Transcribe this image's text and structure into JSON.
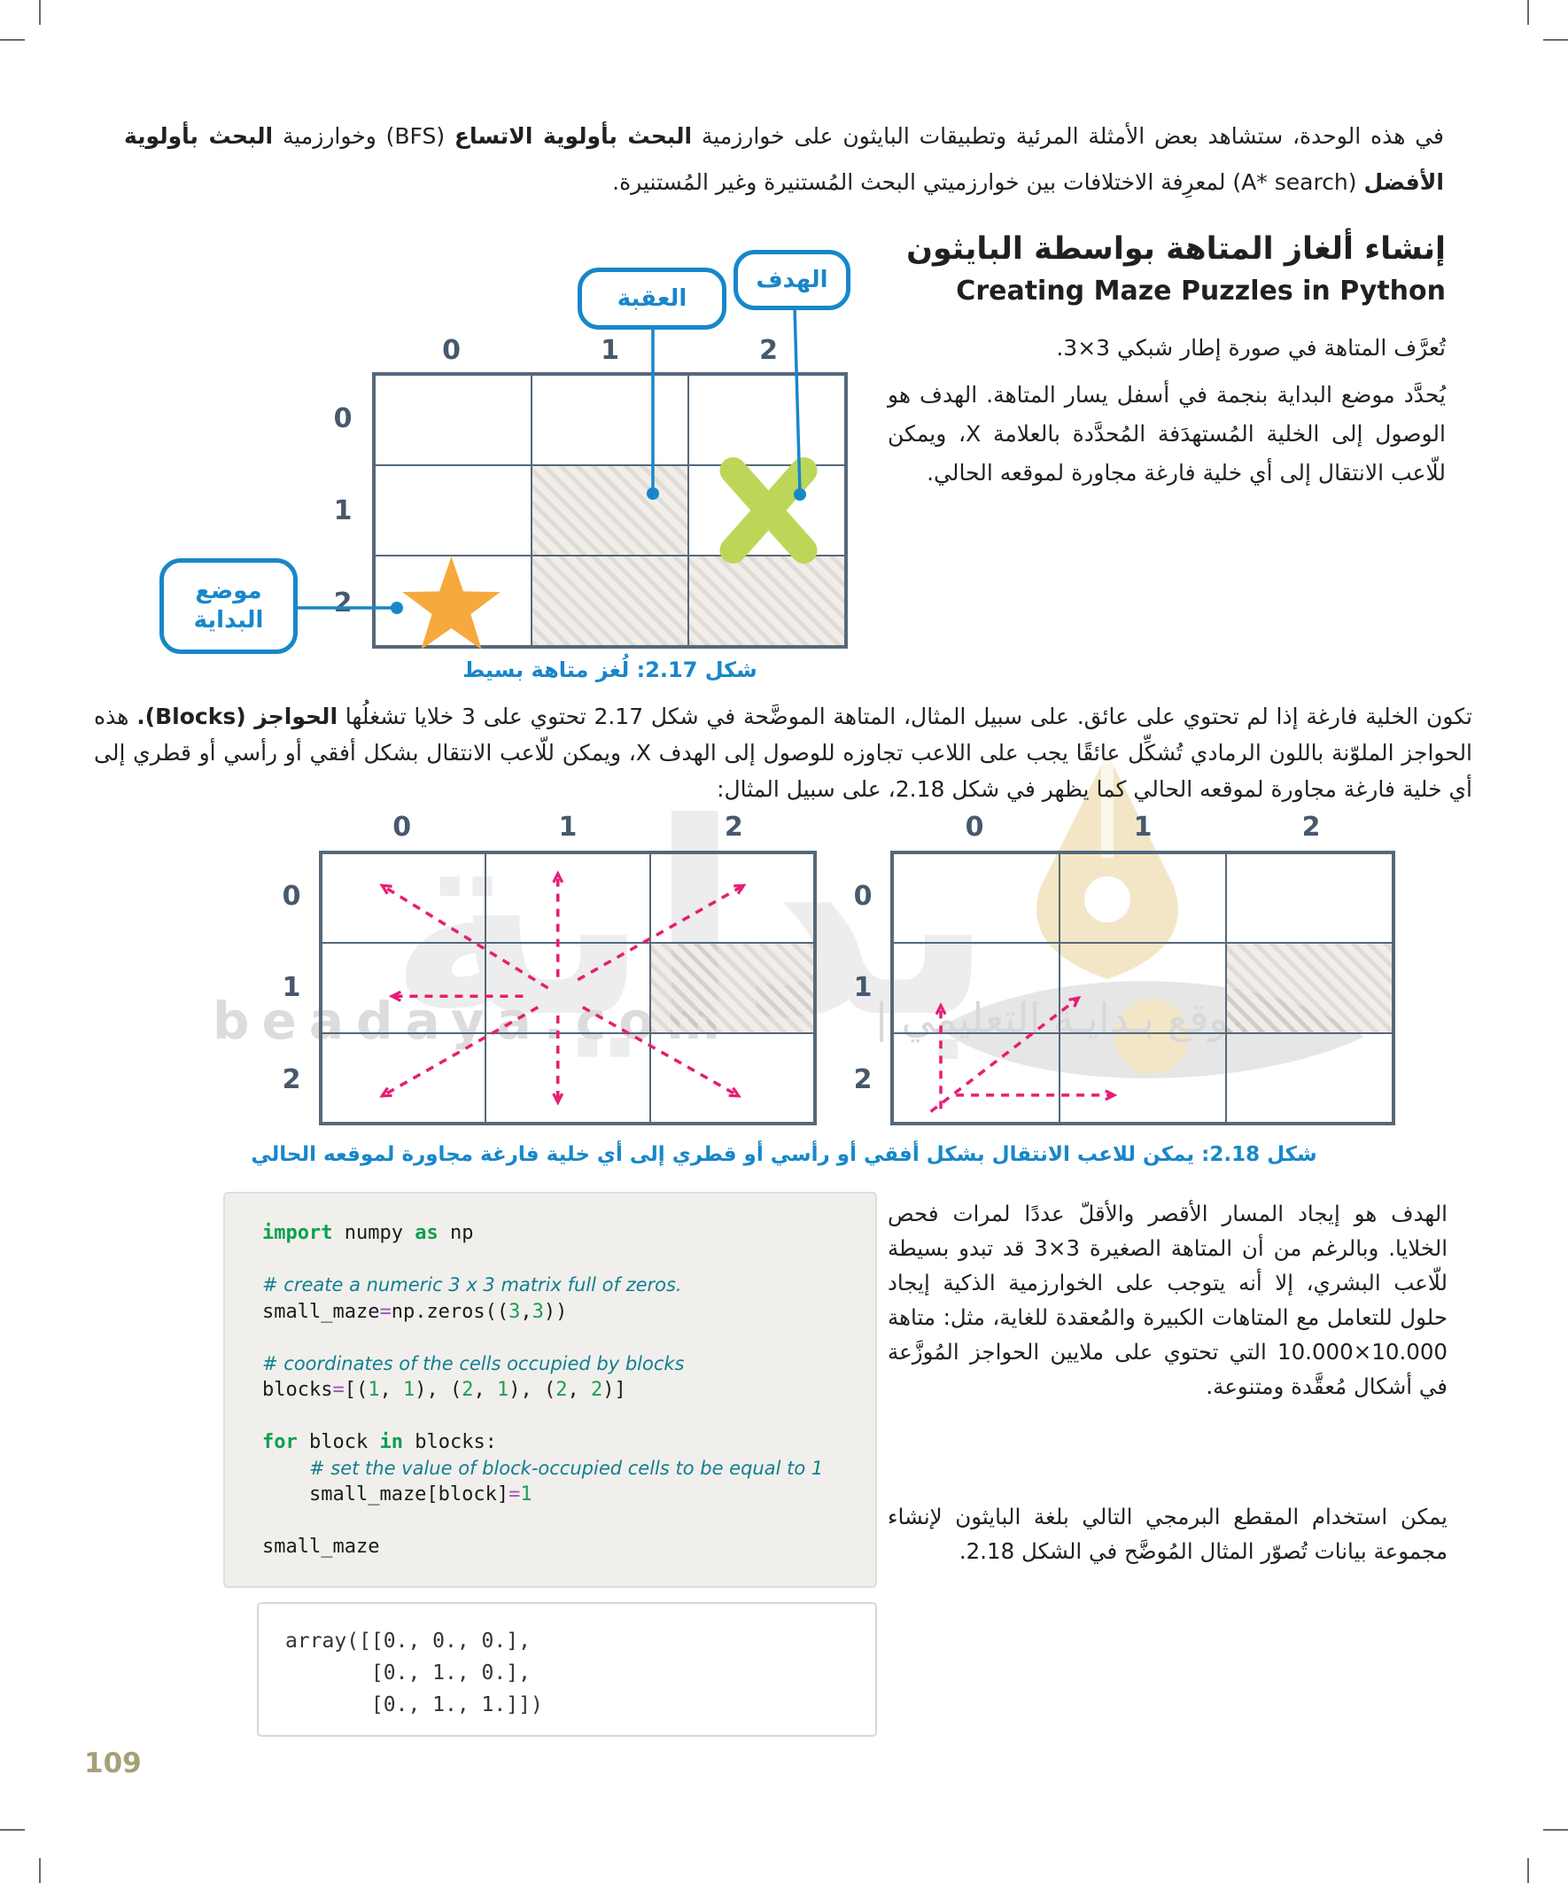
{
  "page": {
    "number": "109"
  },
  "colors": {
    "accent_blue": "#1887c9",
    "grid_line": "#56687a",
    "label": "#47596b",
    "star": "#f6a93c",
    "goal_x": "#bcd757",
    "arrow": "#e71d73",
    "code_keyword": "#0ca04e",
    "code_comment": "#0f7f90",
    "code_number": "#1ba052",
    "code_operator": "#9d59b3",
    "page_number": "#a5a077"
  },
  "intro": {
    "s1": "في هذه الوحدة، ستشاهد بعض الأمثلة المرئية وتطبيقات البايثون على خوارزمية ",
    "s2": "البحث بأولوية الاتساع",
    "s3": " (BFS) وخوارزمية ",
    "s4": "البحث بأولوية الأفضل",
    "s5": " (A* search) لمعرِفة الاختلافات بين خوارزميتي البحث المُستنيرة وغير المُستنيرة."
  },
  "heading": {
    "ar": "إنشاء ألغاز المتاهة بواسطة البايثون",
    "en": "Creating Maze Puzzles in Python"
  },
  "sections": {
    "define_maze": "تُعرَّف المتاهة في صورة إطار شبكي 3×3.",
    "start_para": "يُحدَّد موضع البداية بنجمة في أسفل يسار المتاهة. الهدف هو الوصول إلى الخلية المُستهدَفة المُحدَّدة بالعلامة X، ويمكن للّاعب الانتقال إلى أي خلية فارغة مجاورة لموقعه الحالي.",
    "blocks_a": "تكون الخلية فارغة إذا لم تحتوي على عائق. على سبيل المثال، المتاهة الموضَّحة في شكل 2.17 تحتوي على 3 خلايا تشغلُها ",
    "blocks_b": "الحواجز (Blocks).",
    "blocks_c": " هذه الحواجز الملوّنة باللون الرمادي تُشكِّل عائقًا يجب على اللاعب تجاوزه للوصول إلى الهدف X، ويمكن للّاعب الانتقال بشكل أفقي أو رأسي أو قطري إلى أي خلية فارغة مجاورة لموقعه الحالي كما يظهر في شكل 2.18، على سبيل المثال:",
    "right_p1": "الهدف هو إيجاد المسار الأقصر والأقلّ عددًا لمرات فحص الخلايا. وبالرغم من أن المتاهة الصغيرة 3×3 قد تبدو بسيطة للّاعب البشري، إلا أنه يتوجب على الخوارزمية الذكية إيجاد حلول للتعامل مع المتاهات الكبيرة والمُعقدة للغاية، مثل: متاهة 10.000×10.000 التي تحتوي على ملايين الحواجز المُوزَّعة في أشكال مُعقَّدة ومتنوعة.",
    "right_p2": "يمكن استخدام المقطع البرمجي التالي بلغة البايثون لإنشاء مجموعة بيانات تُصوّر المثال المُوضَّح في الشكل 2.18."
  },
  "callouts": {
    "obstacle": "العقبة",
    "goal": "الهدف",
    "start": "موضع البداية"
  },
  "captions": {
    "fig217": "شكل 2.17: لُغز متاهة بسيط",
    "fig218": "شكل 2.18: يمكن للاعب الانتقال بشكل أفقي أو رأسي أو قطري إلى أي خلية فارغة مجاورة لموقعه الحالي"
  },
  "mazes": {
    "fig217": {
      "cols": [
        "0",
        "1",
        "2"
      ],
      "rows": [
        "0",
        "1",
        "2"
      ],
      "blocked": [
        [
          1,
          1
        ],
        [
          2,
          1
        ],
        [
          2,
          2
        ]
      ],
      "star": [
        2,
        0
      ],
      "goal": [
        1,
        2
      ],
      "arrows": []
    },
    "fig218_left": {
      "cols": [
        "0",
        "1",
        "2"
      ],
      "rows": [
        "0",
        "1",
        "2"
      ],
      "blocked": [
        [
          1,
          2
        ]
      ],
      "arrows": [
        {
          "f": [
            46,
            50
          ],
          "t": [
            13,
            13
          ]
        },
        {
          "f": [
            48,
            46
          ],
          "t": [
            48,
            9
          ]
        },
        {
          "f": [
            52,
            47
          ],
          "t": [
            85,
            13
          ]
        },
        {
          "f": [
            41,
            53
          ],
          "t": [
            15,
            53
          ]
        },
        {
          "f": [
            44,
            57
          ],
          "t": [
            13,
            89
          ]
        },
        {
          "f": [
            48,
            60
          ],
          "t": [
            48,
            91
          ]
        },
        {
          "f": [
            53,
            57
          ],
          "t": [
            84,
            89
          ]
        }
      ]
    },
    "fig218_right": {
      "cols": [
        "0",
        "1",
        "2"
      ],
      "rows": [
        "0",
        "1",
        "2"
      ],
      "blocked": [
        [
          1,
          2
        ]
      ],
      "arrows": [
        {
          "f": [
            10,
            94
          ],
          "t": [
            10,
            57
          ]
        },
        {
          "f": [
            8,
            95
          ],
          "t": [
            37,
            54
          ]
        },
        {
          "f": [
            13,
            89
          ],
          "t": [
            44,
            89
          ]
        }
      ]
    }
  },
  "code": {
    "lines": [
      [
        [
          "kw",
          "import"
        ],
        [
          "pl",
          " numpy "
        ],
        [
          "kw",
          "as"
        ],
        [
          "pl",
          " np"
        ]
      ],
      [],
      [
        [
          "cm",
          "# create a numeric 3 x 3 matrix full of zeros."
        ]
      ],
      [
        [
          "pl",
          "small_maze"
        ],
        [
          "op",
          "="
        ],
        [
          "pl",
          "np.zeros(("
        ],
        [
          "num",
          "3"
        ],
        [
          "pl",
          ","
        ],
        [
          "num",
          "3"
        ],
        [
          "pl",
          "))"
        ]
      ],
      [],
      [
        [
          "cm",
          "# coordinates of the cells occupied by blocks"
        ]
      ],
      [
        [
          "pl",
          "blocks"
        ],
        [
          "op",
          "="
        ],
        [
          "pl",
          "[("
        ],
        [
          "num",
          "1"
        ],
        [
          "pl",
          ", "
        ],
        [
          "num",
          "1"
        ],
        [
          "pl",
          "), ("
        ],
        [
          "num",
          "2"
        ],
        [
          "pl",
          ", "
        ],
        [
          "num",
          "1"
        ],
        [
          "pl",
          "), ("
        ],
        [
          "num",
          "2"
        ],
        [
          "pl",
          ", "
        ],
        [
          "num",
          "2"
        ],
        [
          "pl",
          ")]"
        ]
      ],
      [],
      [
        [
          "kw",
          "for"
        ],
        [
          "pl",
          " block "
        ],
        [
          "kw",
          "in"
        ],
        [
          "pl",
          " blocks:"
        ]
      ],
      [
        [
          "pl",
          "    "
        ],
        [
          "cm",
          "# set the value of block-occupied cells to be equal to 1"
        ]
      ],
      [
        [
          "pl",
          "    small_maze[block]"
        ],
        [
          "op",
          "="
        ],
        [
          "num",
          "1"
        ]
      ],
      [],
      [
        [
          "pl",
          "small_maze"
        ]
      ]
    ]
  },
  "output": {
    "lines": [
      "array([[0., 0., 0.],",
      "       [0., 1., 0.],",
      "       [0., 1., 1.]])"
    ]
  },
  "watermark": {
    "big": "بداية",
    "latin": "beadaya.com",
    "arabic": "موقع بـدايـة التعليمي |"
  }
}
